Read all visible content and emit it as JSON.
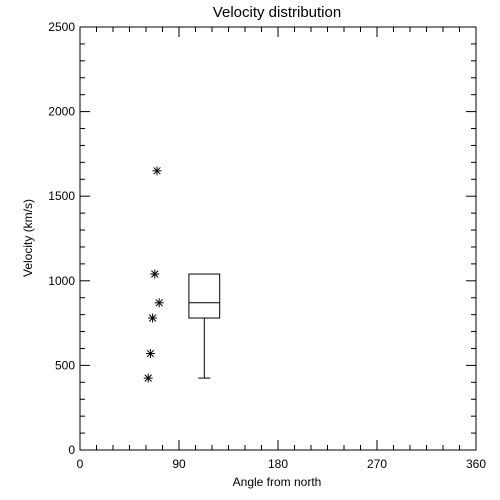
{
  "chart_data": {
    "type": "scatter",
    "title": "Velocity distribution",
    "xlabel": "Angle from north",
    "ylabel": "Velocity (km/s)",
    "xlim": [
      0,
      360
    ],
    "ylim": [
      0,
      2500
    ],
    "xticks": [
      0,
      90,
      180,
      270,
      360
    ],
    "yticks": [
      0,
      500,
      1000,
      1500,
      2000,
      2500
    ],
    "grid": false,
    "marker": "asterisk",
    "points": [
      {
        "x": 70,
        "y": 1650
      },
      {
        "x": 68,
        "y": 1040
      },
      {
        "x": 72,
        "y": 870
      },
      {
        "x": 66,
        "y": 780
      },
      {
        "x": 64,
        "y": 570
      },
      {
        "x": 62,
        "y": 425
      }
    ],
    "boxplot": {
      "x_center": 113,
      "x_halfwidth": 14,
      "min": 425,
      "q1": 780,
      "median": 870,
      "q3": 1040,
      "max": 1040
    }
  }
}
